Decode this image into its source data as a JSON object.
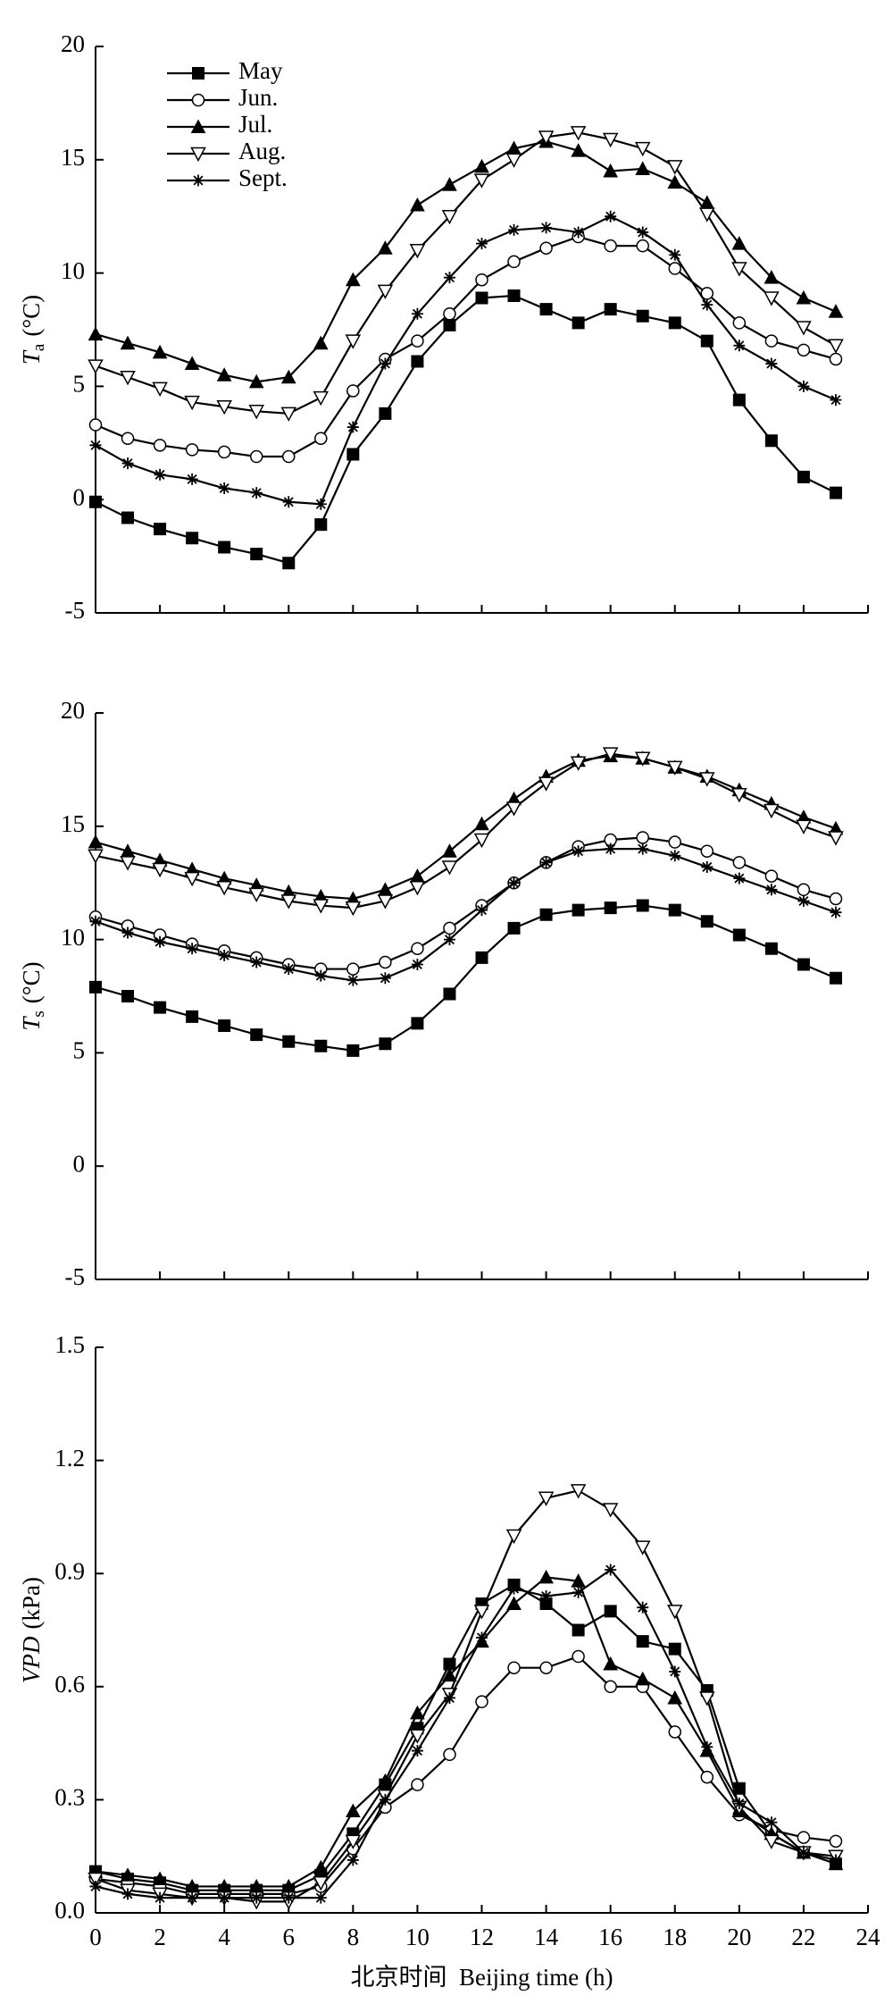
{
  "chart_data": [
    {
      "type": "line",
      "ylabel": {
        "symbol": "T",
        "subscript": "a",
        "unit": "(°C)"
      },
      "x": [
        0,
        1,
        2,
        3,
        4,
        5,
        6,
        7,
        8,
        9,
        10,
        11,
        12,
        13,
        14,
        15,
        16,
        17,
        18,
        19,
        20,
        21,
        22,
        23
      ],
      "xlim": [
        0,
        24
      ],
      "xticks": [
        0,
        2,
        4,
        6,
        8,
        10,
        12,
        14,
        16,
        18,
        20,
        22,
        24
      ],
      "show_xtick_labels": false,
      "ylim": [
        -5,
        20
      ],
      "yticks": [
        -5,
        0,
        5,
        10,
        15,
        20
      ],
      "legend": "upper left",
      "series": [
        {
          "name": "May",
          "color": "#000000",
          "marker": "square",
          "values": [
            -0.1,
            -0.8,
            -1.3,
            -1.7,
            -2.1,
            -2.4,
            -2.8,
            -1.1,
            2.0,
            3.8,
            6.1,
            7.7,
            8.9,
            9.0,
            8.4,
            7.8,
            8.4,
            8.1,
            7.8,
            7.0,
            4.4,
            2.6,
            1.0,
            0.3
          ]
        },
        {
          "name": "Jun.",
          "color": "#000000",
          "marker": "circle-open",
          "values": [
            3.3,
            2.7,
            2.4,
            2.2,
            2.1,
            1.9,
            1.9,
            2.7,
            4.8,
            6.2,
            7.0,
            8.2,
            9.7,
            10.5,
            11.1,
            11.6,
            11.2,
            11.2,
            10.2,
            9.1,
            7.8,
            7.0,
            6.6,
            6.2
          ]
        },
        {
          "name": "Jul.",
          "color": "#000000",
          "marker": "triangle-up",
          "values": [
            7.3,
            6.9,
            6.5,
            6.0,
            5.5,
            5.2,
            5.4,
            6.9,
            9.7,
            11.1,
            13.0,
            13.9,
            14.7,
            15.5,
            15.8,
            15.4,
            14.5,
            14.6,
            14.0,
            13.1,
            11.3,
            9.8,
            8.9,
            8.3
          ]
        },
        {
          "name": "Aug.",
          "color": "#000000",
          "marker": "triangle-down-open",
          "values": [
            5.9,
            5.4,
            4.9,
            4.3,
            4.1,
            3.9,
            3.8,
            4.5,
            7.0,
            9.2,
            11.0,
            12.5,
            14.1,
            15.0,
            16.0,
            16.2,
            15.9,
            15.5,
            14.7,
            12.6,
            10.2,
            8.9,
            7.6,
            6.8
          ]
        },
        {
          "name": "Sept.",
          "color": "#000000",
          "marker": "asterisk",
          "values": [
            2.4,
            1.6,
            1.1,
            0.9,
            0.5,
            0.3,
            -0.1,
            -0.2,
            3.2,
            6.0,
            8.2,
            9.8,
            11.3,
            11.9,
            12.0,
            11.8,
            12.5,
            11.8,
            10.8,
            8.6,
            6.8,
            6.0,
            5.0,
            4.4
          ]
        }
      ]
    },
    {
      "type": "line",
      "ylabel": {
        "symbol": "T",
        "subscript": "s",
        "unit": "(°C)"
      },
      "x": [
        0,
        1,
        2,
        3,
        4,
        5,
        6,
        7,
        8,
        9,
        10,
        11,
        12,
        13,
        14,
        15,
        16,
        17,
        18,
        19,
        20,
        21,
        22,
        23
      ],
      "xlim": [
        0,
        24
      ],
      "xticks": [
        0,
        2,
        4,
        6,
        8,
        10,
        12,
        14,
        16,
        18,
        20,
        22,
        24
      ],
      "show_xtick_labels": false,
      "ylim": [
        -5,
        20
      ],
      "yticks": [
        -5,
        0,
        5,
        10,
        15,
        20
      ],
      "series": [
        {
          "color": "#000000",
          "marker": "square",
          "values": [
            7.9,
            7.5,
            7.0,
            6.6,
            6.2,
            5.8,
            5.5,
            5.3,
            5.1,
            5.4,
            6.3,
            7.6,
            9.2,
            10.5,
            11.1,
            11.3,
            11.4,
            11.5,
            11.3,
            10.8,
            10.2,
            9.6,
            8.9,
            8.3
          ]
        },
        {
          "color": "#000000",
          "marker": "circle-open",
          "values": [
            11.0,
            10.6,
            10.2,
            9.8,
            9.5,
            9.2,
            8.9,
            8.7,
            8.7,
            9.0,
            9.6,
            10.5,
            11.5,
            12.5,
            13.4,
            14.1,
            14.4,
            14.5,
            14.3,
            13.9,
            13.4,
            12.8,
            12.2,
            11.8
          ]
        },
        {
          "color": "#000000",
          "marker": "triangle-up",
          "values": [
            14.3,
            13.9,
            13.5,
            13.1,
            12.7,
            12.4,
            12.1,
            11.9,
            11.8,
            12.2,
            12.8,
            13.9,
            15.1,
            16.2,
            17.2,
            17.9,
            18.1,
            18.0,
            17.6,
            17.2,
            16.6,
            16.0,
            15.4,
            14.9
          ]
        },
        {
          "color": "#000000",
          "marker": "triangle-down-open",
          "values": [
            13.7,
            13.4,
            13.1,
            12.7,
            12.3,
            12.0,
            11.7,
            11.5,
            11.4,
            11.7,
            12.3,
            13.2,
            14.4,
            15.8,
            16.9,
            17.8,
            18.2,
            18.0,
            17.6,
            17.1,
            16.4,
            15.7,
            15.0,
            14.5
          ]
        },
        {
          "color": "#000000",
          "marker": "asterisk",
          "values": [
            10.8,
            10.3,
            9.9,
            9.6,
            9.3,
            9.0,
            8.7,
            8.4,
            8.2,
            8.3,
            8.9,
            10.0,
            11.3,
            12.5,
            13.4,
            13.9,
            14.0,
            14.0,
            13.7,
            13.2,
            12.7,
            12.2,
            11.7,
            11.2
          ]
        }
      ]
    },
    {
      "type": "line",
      "ylabel": {
        "symbol": "VPD",
        "unit": "(kPa)"
      },
      "xlabel": "北京时间  Beijing time (h)",
      "x": [
        0,
        1,
        2,
        3,
        4,
        5,
        6,
        7,
        8,
        9,
        10,
        11,
        12,
        13,
        14,
        15,
        16,
        17,
        18,
        19,
        20,
        21,
        22,
        23
      ],
      "xlim": [
        0,
        24
      ],
      "xticks": [
        0,
        2,
        4,
        6,
        8,
        10,
        12,
        14,
        16,
        18,
        20,
        22,
        24
      ],
      "show_xtick_labels": true,
      "ylim": [
        0,
        1.5
      ],
      "yticks": [
        {
          "value": 0,
          "label": "0.0"
        },
        0.3,
        0.6,
        0.9,
        1.2,
        1.5
      ],
      "series": [
        {
          "color": "#000000",
          "marker": "square",
          "values": [
            0.11,
            0.09,
            0.08,
            0.06,
            0.06,
            0.06,
            0.06,
            0.1,
            0.21,
            0.34,
            0.49,
            0.66,
            0.82,
            0.87,
            0.82,
            0.75,
            0.8,
            0.72,
            0.7,
            0.59,
            0.33,
            0.21,
            0.16,
            0.13
          ]
        },
        {
          "color": "#000000",
          "marker": "circle-open",
          "values": [
            0.09,
            0.08,
            0.07,
            0.05,
            0.05,
            0.05,
            0.05,
            0.07,
            0.17,
            0.28,
            0.34,
            0.42,
            0.56,
            0.65,
            0.65,
            0.68,
            0.6,
            0.6,
            0.48,
            0.36,
            0.26,
            0.22,
            0.2,
            0.19
          ]
        },
        {
          "color": "#000000",
          "marker": "triangle-up",
          "values": [
            0.11,
            0.1,
            0.09,
            0.07,
            0.07,
            0.07,
            0.07,
            0.12,
            0.27,
            0.35,
            0.53,
            0.63,
            0.72,
            0.82,
            0.89,
            0.88,
            0.66,
            0.62,
            0.57,
            0.43,
            0.27,
            0.21,
            0.16,
            0.13
          ]
        },
        {
          "color": "#000000",
          "marker": "triangle-down-open",
          "values": [
            0.09,
            0.06,
            0.05,
            0.04,
            0.04,
            0.03,
            0.03,
            0.08,
            0.19,
            0.31,
            0.47,
            0.58,
            0.8,
            1.0,
            1.1,
            1.12,
            1.07,
            0.97,
            0.8,
            0.57,
            0.28,
            0.19,
            0.16,
            0.15
          ]
        },
        {
          "color": "#000000",
          "marker": "asterisk",
          "values": [
            0.07,
            0.05,
            0.04,
            0.04,
            0.04,
            0.04,
            0.04,
            0.04,
            0.14,
            0.3,
            0.43,
            0.57,
            0.73,
            0.86,
            0.84,
            0.85,
            0.91,
            0.81,
            0.64,
            0.44,
            0.29,
            0.24,
            0.16,
            0.14
          ]
        }
      ]
    }
  ]
}
